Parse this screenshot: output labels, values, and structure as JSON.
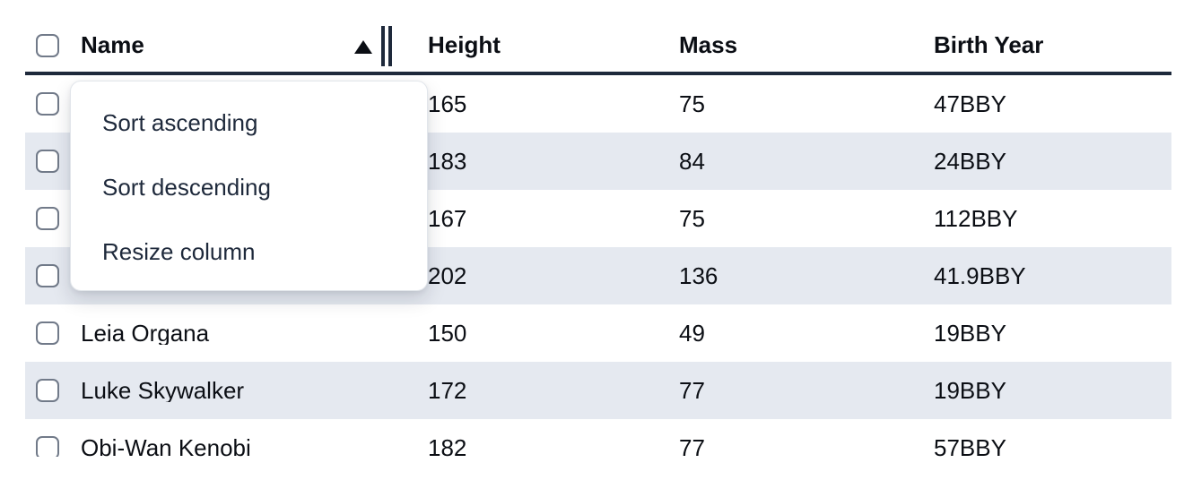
{
  "table": {
    "select_all_checked": false,
    "columns": [
      {
        "key": "name",
        "label": "Name",
        "sorted": "ascending"
      },
      {
        "key": "height",
        "label": "Height",
        "sorted": "none"
      },
      {
        "key": "mass",
        "label": "Mass",
        "sorted": "none"
      },
      {
        "key": "birth_year",
        "label": "Birth Year",
        "sorted": "none"
      }
    ],
    "rows": [
      {
        "selected": false,
        "name": "",
        "height": "165",
        "mass": "75",
        "birth_year": "47BBY"
      },
      {
        "selected": false,
        "name": "",
        "height": "183",
        "mass": "84",
        "birth_year": "24BBY"
      },
      {
        "selected": false,
        "name": "",
        "height": "167",
        "mass": "75",
        "birth_year": "112BBY"
      },
      {
        "selected": false,
        "name": "",
        "height": "202",
        "mass": "136",
        "birth_year": "41.9BBY"
      },
      {
        "selected": false,
        "name": "Leia Organa",
        "height": "150",
        "mass": "49",
        "birth_year": "19BBY"
      },
      {
        "selected": false,
        "name": "Luke Skywalker",
        "height": "172",
        "mass": "77",
        "birth_year": "19BBY"
      },
      {
        "selected": false,
        "name": "Obi-Wan Kenobi",
        "height": "182",
        "mass": "77",
        "birth_year": "57BBY"
      }
    ]
  },
  "column_menu": {
    "open_for_column": "Name",
    "items": [
      {
        "label": "Sort ascending"
      },
      {
        "label": "Sort descending"
      },
      {
        "label": "Resize column"
      }
    ]
  },
  "icons": {
    "sort_ascending": "triangle-up",
    "column_resize": "double-vertical-bars"
  },
  "colors": {
    "text": "#0b0e14",
    "navy": "#1e293b",
    "stripe": "#e5e9f0",
    "chk-border": "#717a89",
    "menu-border": "#e2e6eb"
  }
}
